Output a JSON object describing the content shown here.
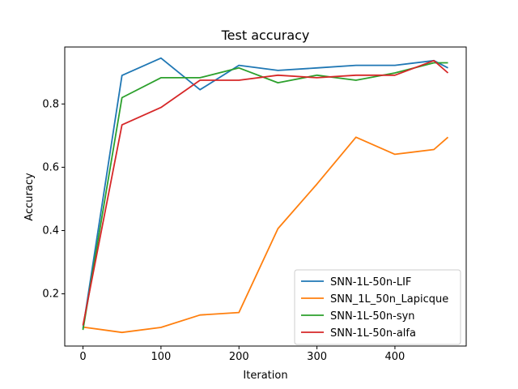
{
  "chart_data": {
    "type": "line",
    "title": "Test accuracy",
    "xlabel": "Iteration",
    "ylabel": "Accuracy",
    "xlim": [
      -23.4,
      491.4
    ],
    "ylim": [
      0.035,
      0.98
    ],
    "xticks": [
      0,
      100,
      200,
      300,
      400
    ],
    "yticks": [
      0.2,
      0.4,
      0.6,
      0.8
    ],
    "grid": false,
    "legend_position": "lower right",
    "x": [
      0,
      50,
      100,
      150,
      200,
      250,
      300,
      350,
      400,
      450,
      468
    ],
    "series": [
      {
        "name": "SNN-1L-50n-LIF",
        "color": "#1f77b4",
        "values": [
          0.09,
          0.89,
          0.945,
          0.845,
          0.922,
          0.906,
          0.914,
          0.922,
          0.922,
          0.937,
          0.914
        ]
      },
      {
        "name": "SNN_1L_50n_Lapicque",
        "color": "#ff7f0e",
        "values": [
          0.095,
          0.078,
          0.094,
          0.133,
          0.141,
          0.406,
          0.547,
          0.695,
          0.641,
          0.656,
          0.695
        ]
      },
      {
        "name": "SNN-1L-50n-syn",
        "color": "#2ca02c",
        "values": [
          0.086,
          0.82,
          0.883,
          0.883,
          0.914,
          0.867,
          0.891,
          0.875,
          0.898,
          0.93,
          0.93
        ]
      },
      {
        "name": "SNN-1L-50n-alfa",
        "color": "#d62728",
        "values": [
          0.1,
          0.734,
          0.789,
          0.875,
          0.875,
          0.891,
          0.883,
          0.891,
          0.891,
          0.937,
          0.898
        ]
      }
    ]
  }
}
